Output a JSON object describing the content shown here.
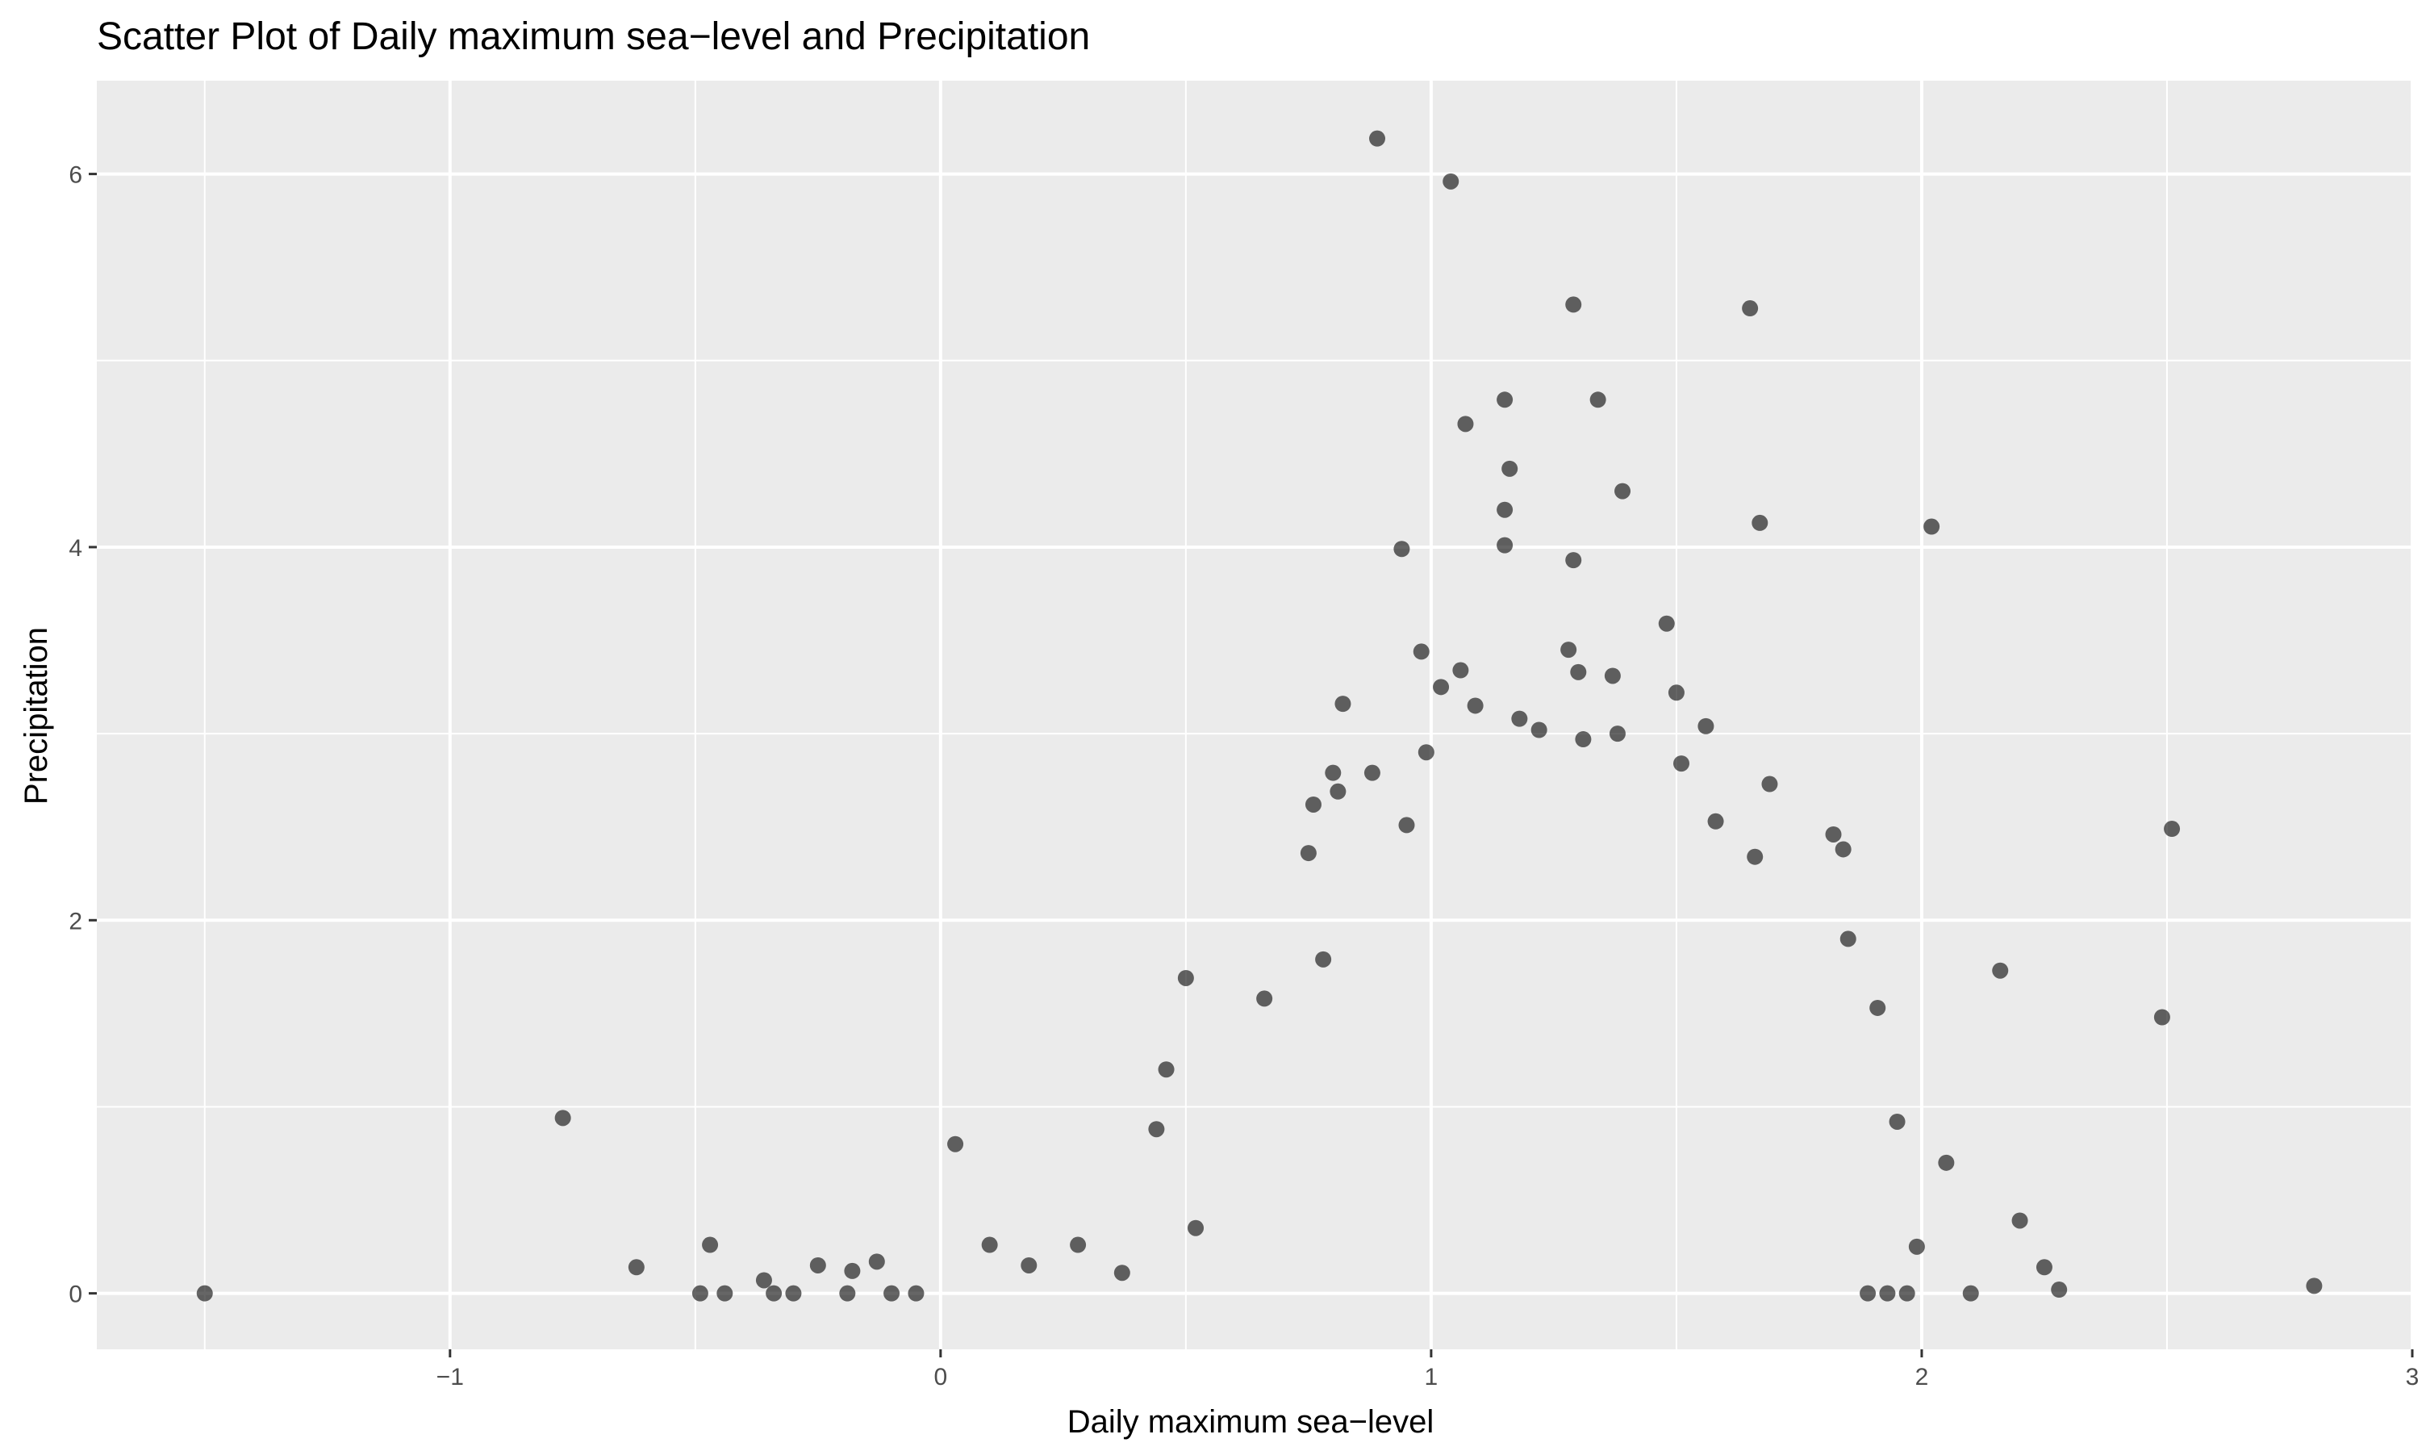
{
  "chart_data": {
    "type": "scatter",
    "title": "Scatter Plot of Daily maximum sea−level and Precipitation",
    "xlabel": "Daily maximum sea−level",
    "ylabel": "Precipitation",
    "xlim": [
      -1.72,
      3.0
    ],
    "ylim": [
      -0.3,
      6.5
    ],
    "x_ticks": [
      -1,
      0,
      1,
      2,
      3
    ],
    "x_tick_labels": [
      "−1",
      "0",
      "1",
      "2",
      "3"
    ],
    "y_ticks": [
      0,
      2,
      4,
      6
    ],
    "y_tick_labels": [
      "0",
      "2",
      "4",
      "6"
    ],
    "grid": true,
    "legend": "none",
    "colors": {
      "panel": "#EBEBEB",
      "grid": "#FFFFFF",
      "point": "#000000"
    },
    "point_opacity": 0.6,
    "series": [
      {
        "points": [
          [
            -1.5,
            0.0
          ],
          [
            -0.77,
            0.94
          ],
          [
            -0.62,
            0.14
          ],
          [
            -0.47,
            0.26
          ],
          [
            -0.49,
            0.0
          ],
          [
            -0.44,
            0.0
          ],
          [
            -0.36,
            0.07
          ],
          [
            -0.34,
            0.0
          ],
          [
            -0.3,
            0.0
          ],
          [
            -0.25,
            0.15
          ],
          [
            -0.19,
            0.0
          ],
          [
            -0.18,
            0.12
          ],
          [
            -0.13,
            0.17
          ],
          [
            -0.1,
            0.0
          ],
          [
            -0.05,
            0.0
          ],
          [
            0.03,
            0.8
          ],
          [
            0.1,
            0.26
          ],
          [
            0.18,
            0.15
          ],
          [
            0.28,
            0.26
          ],
          [
            0.37,
            0.11
          ],
          [
            0.44,
            0.88
          ],
          [
            0.46,
            1.2
          ],
          [
            0.5,
            1.69
          ],
          [
            0.52,
            0.35
          ],
          [
            0.66,
            1.58
          ],
          [
            0.75,
            2.36
          ],
          [
            0.76,
            2.62
          ],
          [
            0.78,
            1.79
          ],
          [
            0.8,
            2.79
          ],
          [
            0.81,
            2.69
          ],
          [
            0.82,
            3.16
          ],
          [
            0.88,
            2.79
          ],
          [
            0.89,
            6.19
          ],
          [
            0.94,
            3.99
          ],
          [
            0.95,
            2.51
          ],
          [
            0.98,
            3.44
          ],
          [
            0.99,
            2.9
          ],
          [
            1.02,
            3.25
          ],
          [
            1.04,
            5.96
          ],
          [
            1.06,
            3.34
          ],
          [
            1.07,
            4.66
          ],
          [
            1.09,
            3.15
          ],
          [
            1.15,
            4.79
          ],
          [
            1.16,
            4.42
          ],
          [
            1.15,
            4.2
          ],
          [
            1.15,
            4.01
          ],
          [
            1.18,
            3.08
          ],
          [
            1.22,
            3.02
          ],
          [
            1.28,
            3.45
          ],
          [
            1.29,
            5.3
          ],
          [
            1.29,
            3.93
          ],
          [
            1.3,
            3.33
          ],
          [
            1.31,
            2.97
          ],
          [
            1.34,
            4.79
          ],
          [
            1.37,
            3.31
          ],
          [
            1.38,
            3.0
          ],
          [
            1.39,
            4.3
          ],
          [
            1.48,
            3.59
          ],
          [
            1.5,
            3.22
          ],
          [
            1.51,
            2.84
          ],
          [
            1.56,
            3.04
          ],
          [
            1.58,
            2.53
          ],
          [
            1.65,
            5.28
          ],
          [
            1.67,
            4.13
          ],
          [
            1.69,
            2.73
          ],
          [
            1.66,
            2.34
          ],
          [
            1.82,
            2.46
          ],
          [
            1.84,
            2.38
          ],
          [
            1.85,
            1.9
          ],
          [
            1.91,
            1.53
          ],
          [
            2.02,
            4.11
          ],
          [
            2.05,
            0.7
          ],
          [
            2.1,
            0.0
          ],
          [
            2.16,
            1.73
          ],
          [
            2.2,
            0.39
          ],
          [
            2.25,
            0.14
          ],
          [
            2.28,
            0.02
          ],
          [
            2.49,
            1.48
          ],
          [
            2.51,
            2.49
          ],
          [
            2.8,
            0.04
          ],
          [
            1.89,
            0.0
          ],
          [
            1.93,
            0.0
          ],
          [
            1.97,
            0.0
          ],
          [
            1.99,
            0.25
          ],
          [
            1.95,
            0.92
          ]
        ]
      }
    ]
  }
}
